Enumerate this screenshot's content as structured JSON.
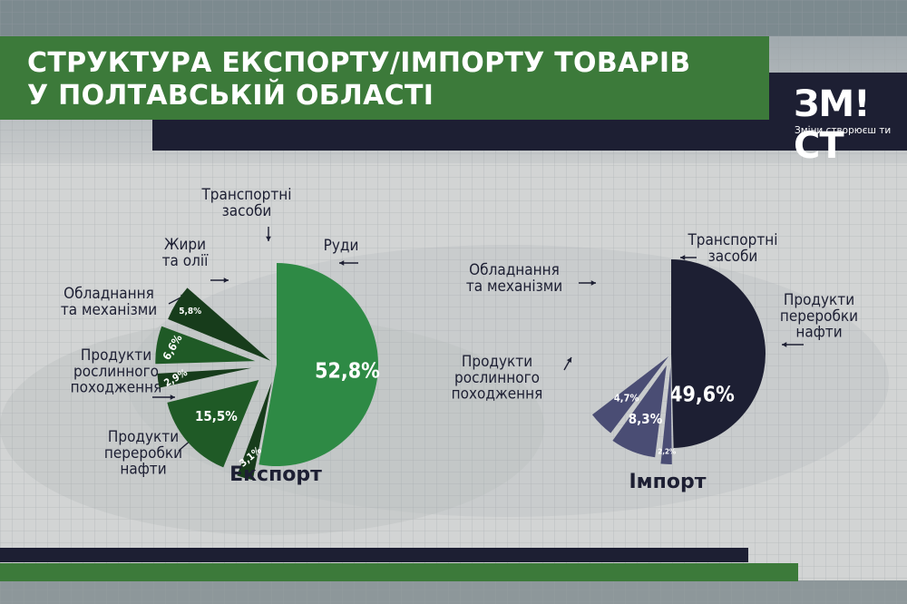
{
  "title": {
    "line1": "СТРУКТУРА ЕКСПОРТУ/ІМПОРТУ ТОВАРІВ",
    "line2": "У ПОЛТАВСЬКІЙ ОБЛАСТІ"
  },
  "logo": {
    "text": "ЗМ!СТ",
    "tagline": "Зміни створюєш ти"
  },
  "colors": {
    "export_main": "#2e8a45",
    "export_dark": "#1f5a26",
    "export_darker": "#173c1b",
    "import_main": "#1d1f33",
    "import_slice": "#4a4d74",
    "brand_green": "#3c7a3a",
    "brand_navy": "#1d1f33"
  },
  "chart_data": [
    {
      "type": "pie",
      "title": "Експорт",
      "slices": [
        {
          "label": "Руди",
          "value": 52.8,
          "value_label": "52,8%"
        },
        {
          "label": "Продукти переробки нафти",
          "value": 3.1,
          "value_label": "3,1%"
        },
        {
          "label": "Продукти рослинного походження",
          "value": 15.5,
          "value_label": "15,5%"
        },
        {
          "label": "Обладнання та механізми",
          "value": 2.9,
          "value_label": "2,9%"
        },
        {
          "label": "Жири та олії",
          "value": 6.6,
          "value_label": "6,6%"
        },
        {
          "label": "Транспортні засоби",
          "value": 5.8,
          "value_label": "5,8%"
        }
      ]
    },
    {
      "type": "pie",
      "title": "Імпорт",
      "slices": [
        {
          "label": "Продукти переробки нафти",
          "value": 49.6,
          "value_label": "49,6%"
        },
        {
          "label": "Продукти рослинного походження",
          "value": 2.2,
          "value_label": "2,2%"
        },
        {
          "label": "Обладнання та механізми",
          "value": 8.3,
          "value_label": "8,3%"
        },
        {
          "label": "Транспортні засоби",
          "value": 4.7,
          "value_label": "4,7%"
        }
      ]
    }
  ]
}
